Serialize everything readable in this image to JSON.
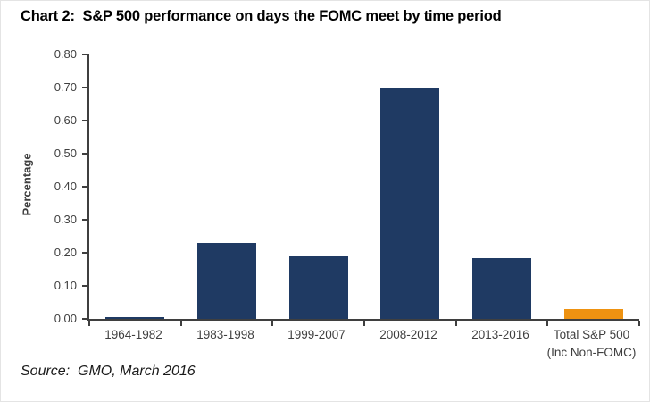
{
  "title": "Chart 2:  S&P 500 performance on days the FOMC meet by time period",
  "source": "Source:  GMO, March 2016",
  "chart_data": {
    "type": "bar",
    "title": "Chart 2:  S&P 500 performance on days the FOMC meet by time period",
    "xlabel": "",
    "ylabel": "Percentage",
    "ylim": [
      0,
      0.8
    ],
    "ytick_step": 0.1,
    "ytick_labels": [
      "0.00",
      "0.10",
      "0.20",
      "0.30",
      "0.40",
      "0.50",
      "0.60",
      "0.70",
      "0.80"
    ],
    "categories": [
      "1964-1982",
      "1983-1998",
      "1999-2007",
      "2008-2012",
      "2013-2016",
      "Total S&P 500\n(Inc Non-FOMC)"
    ],
    "values": [
      0.005,
      0.23,
      0.19,
      0.7,
      0.185,
      0.03
    ],
    "bar_colors": [
      "#1F3A63",
      "#1F3A63",
      "#1F3A63",
      "#1F3A63",
      "#1F3A63",
      "#EE9211"
    ],
    "grid": false,
    "legend_position": "none",
    "source_note": "Source:  GMO, March 2016"
  },
  "colors": {
    "bar_navy": "#1F3A63",
    "bar_orange": "#EE9211",
    "axis": "#3F3F3F",
    "tick_label": "#3F3F3F",
    "title": "#000000",
    "background": "#FFFFFF"
  }
}
